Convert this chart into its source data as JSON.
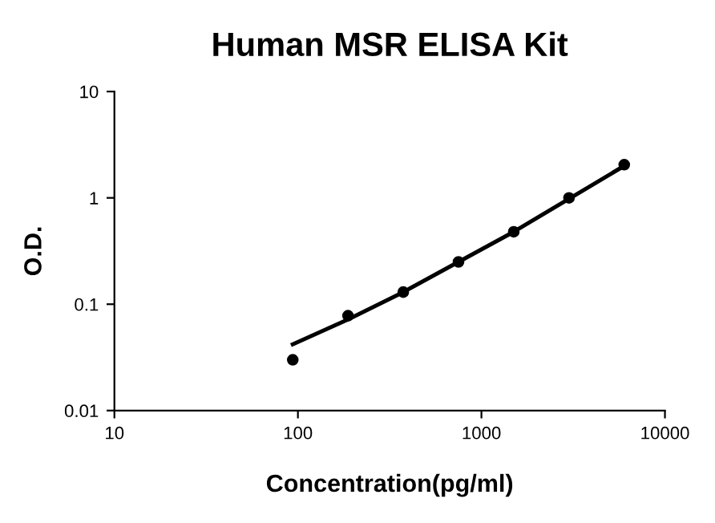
{
  "chart_data": {
    "type": "scatter",
    "title": "Human MSR ELISA Kit",
    "xlabel": "Concentration(pg/ml)",
    "ylabel": "O.D.",
    "log": "xy",
    "xlim": [
      10,
      10000
    ],
    "xticks": [
      10,
      100,
      1000,
      10000
    ],
    "ylim": [
      0.01,
      10
    ],
    "yticks": [
      0.01,
      0.1,
      1,
      10
    ],
    "grid": false,
    "legend": false,
    "series": [
      {
        "color": "#000000",
        "marker": "circle",
        "x": [
          93.75,
          187.5,
          375,
          750,
          1500,
          3000,
          6000
        ],
        "values": [
          0.03,
          0.078,
          0.13,
          0.25,
          0.48,
          1.0,
          2.05
        ]
      },
      {
        "type": "line",
        "color": "#000000",
        "line_style": "solid",
        "x": [
          93.75,
          187.5,
          375,
          750,
          1500,
          3000,
          6000
        ],
        "values": [
          0.042,
          0.072,
          0.13,
          0.25,
          0.48,
          0.98,
          2.0
        ]
      }
    ]
  }
}
